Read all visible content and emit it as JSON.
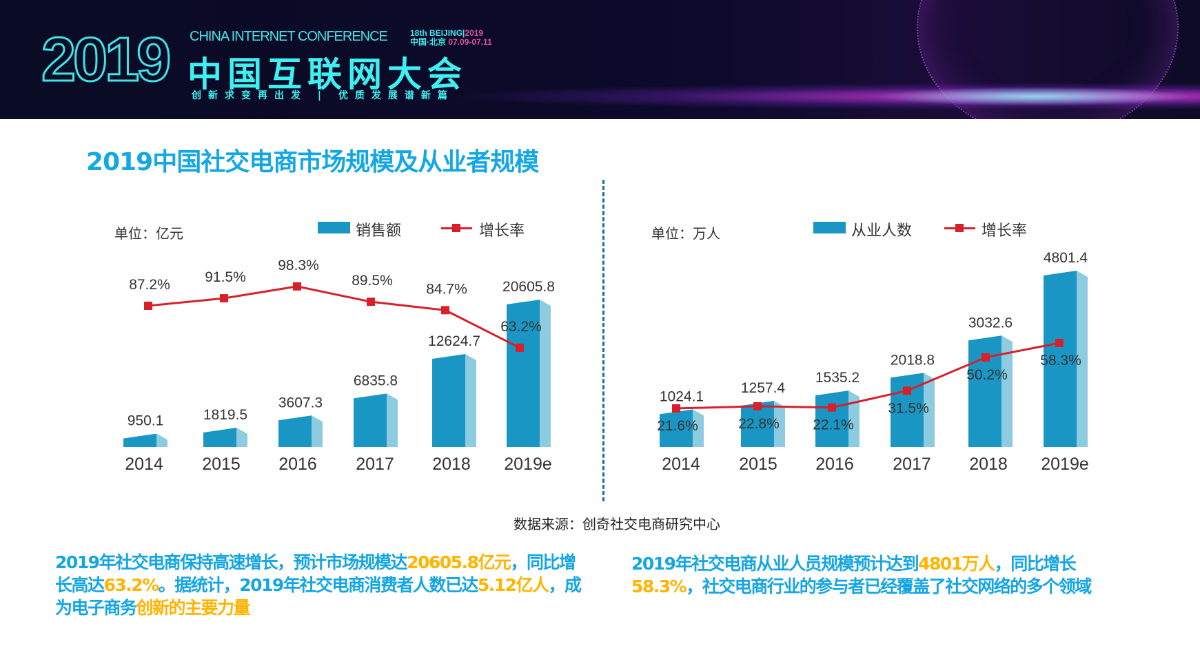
{
  "header": {
    "logo_year": "2019",
    "conference_en": "CHINA INTERNET CONFERENCE",
    "badge_session": "18th",
    "badge_city": "BEIJING",
    "badge_year": "2019",
    "badge_city_cn": "中国·北京",
    "badge_dates": "07.09-07.11",
    "conference_cn": "中国互联网大会",
    "slogan": "创新求变再出发 | 优质发展谱新篇"
  },
  "title": "2019中国社交电商市场规模及从业者规模",
  "colors": {
    "bar": "#1a96c4",
    "bar_side": "#8ccbe0",
    "line": "#d7202a",
    "title": "#14a7e6",
    "highlight": "#ffb400"
  },
  "chart_data": [
    {
      "type": "bar+line",
      "unit_label": "单位：亿元",
      "legend": [
        "销售额",
        "增长率"
      ],
      "legend_placement": "top",
      "categories": [
        "2014",
        "2015",
        "2016",
        "2017",
        "2018",
        "2019e"
      ],
      "series": [
        {
          "name": "销售额",
          "type": "bar",
          "values": [
            950.1,
            1819.5,
            3607.3,
            6835.8,
            12624.7,
            20605.8
          ],
          "labels": [
            "950.1",
            "1819.5",
            "3607.3",
            "6835.8",
            "12624.7",
            "20605.8"
          ]
        },
        {
          "name": "增长率",
          "type": "line",
          "values": [
            87.2,
            91.5,
            98.3,
            89.5,
            84.7,
            63.2
          ],
          "labels": [
            "87.2%",
            "91.5%",
            "98.3%",
            "89.5%",
            "84.7%",
            "63.2%"
          ]
        }
      ],
      "grid": false
    },
    {
      "type": "bar+line",
      "unit_label": "单位：万人",
      "legend": [
        "从业人数",
        "增长率"
      ],
      "legend_placement": "top",
      "categories": [
        "2014",
        "2015",
        "2016",
        "2017",
        "2018",
        "2019e"
      ],
      "series": [
        {
          "name": "从业人数",
          "type": "bar",
          "values": [
            1024.1,
            1257.4,
            1535.2,
            2018.8,
            3032.6,
            4801.4
          ],
          "labels": [
            "1024.1",
            "1257.4",
            "1535.2",
            "2018.8",
            "3032.6",
            "4801.4"
          ]
        },
        {
          "name": "增长率",
          "type": "line",
          "values": [
            21.6,
            22.8,
            22.1,
            31.5,
            50.2,
            58.3
          ],
          "labels": [
            "21.6%",
            "22.8%",
            "22.1%",
            "31.5%",
            "50.2%",
            "58.3%"
          ]
        }
      ],
      "grid": false
    }
  ],
  "source": "数据来源：创奇社交电商研究中心",
  "summary_left": {
    "p1": "2019年社交电商保持高速增长，预计市场规模达",
    "h1": "20605.8亿元",
    "p2": "，同比增长高达",
    "h2": "63.2%",
    "p3": "。据统计，2019年社交电商消费者人数已达",
    "h3": "5.12亿人",
    "p4": "，成为电子商务",
    "h4": "创新的主要力量"
  },
  "summary_right": {
    "p1": "2019年社交电商从业人员规模预计达到",
    "h1": "4801万人",
    "p2": "，同比增长",
    "h2": "58.3%",
    "p3": "，社交电商行业的参与者已经覆盖了社交网络的多个领域"
  }
}
